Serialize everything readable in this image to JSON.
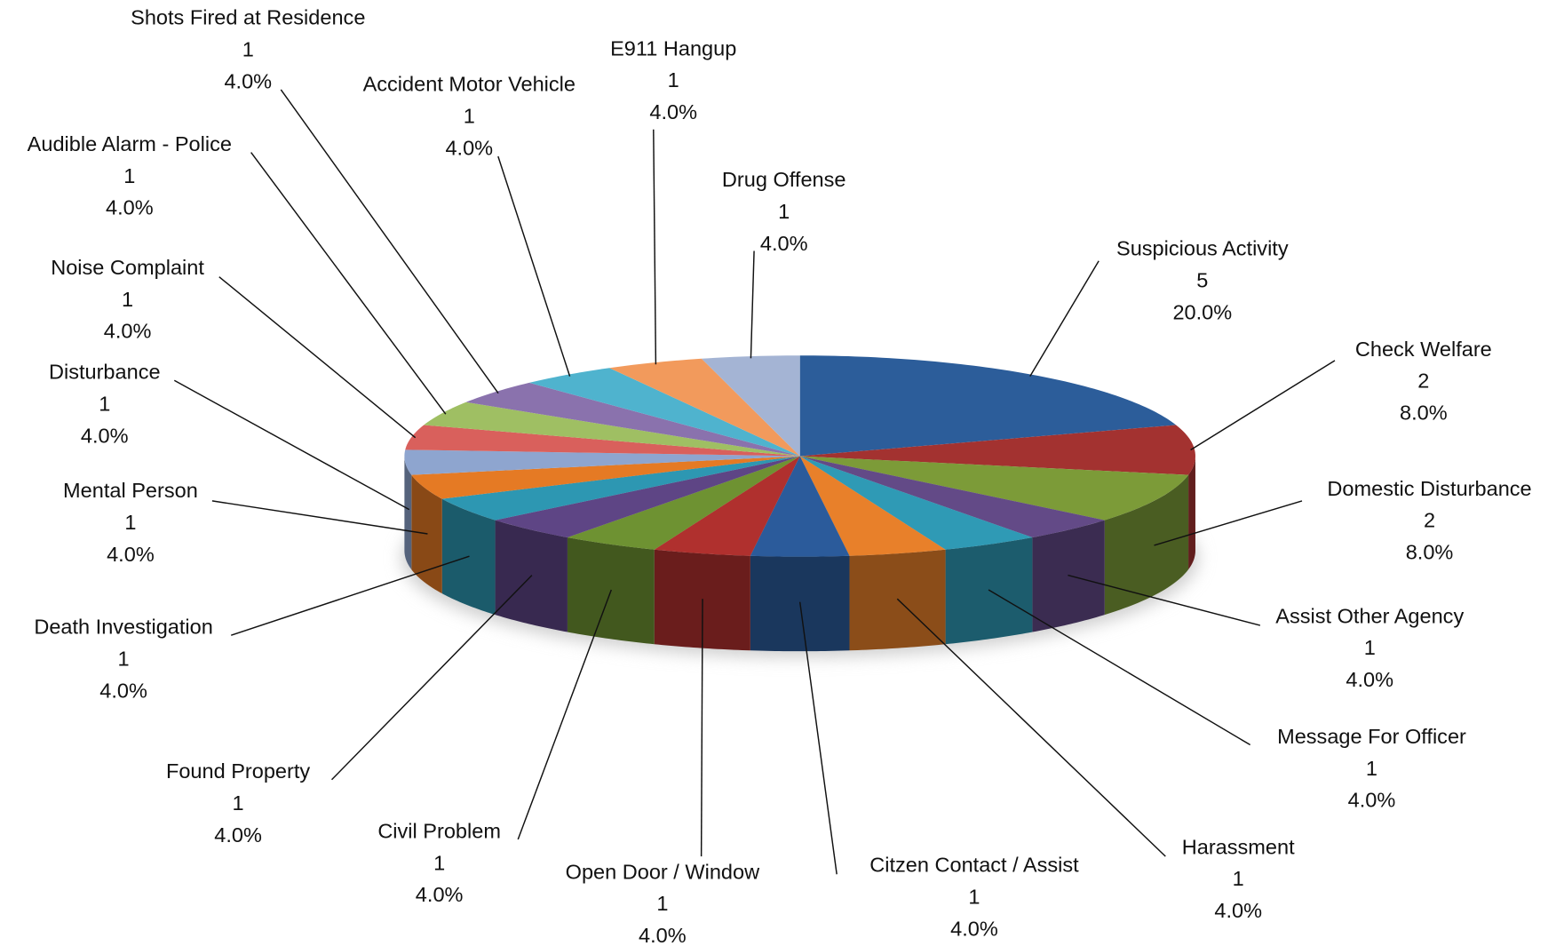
{
  "chart_data": {
    "type": "pie3d",
    "categories": [
      "Suspicious Activity",
      "Check Welfare",
      "Domestic Disturbance",
      "Assist Other Agency",
      "Message For Officer",
      "Harassment",
      "Citzen Contact / Assist",
      "Open Door / Window",
      "Civil Problem",
      "Found Property",
      "Death Investigation",
      "Mental Person",
      "Disturbance",
      "Noise Complaint",
      "Audible Alarm - Police",
      "Shots Fired at Residence",
      "Accident Motor Vehicle",
      "E911 Hangup",
      "Drug Offense"
    ],
    "values": [
      5,
      2,
      2,
      1,
      1,
      1,
      1,
      1,
      1,
      1,
      1,
      1,
      1,
      1,
      1,
      1,
      1,
      1,
      1
    ],
    "percents": [
      20,
      8,
      8,
      4,
      4,
      4,
      4,
      4,
      4,
      4,
      4,
      4,
      4,
      4,
      4,
      4,
      4,
      4,
      4
    ],
    "percent_labels": [
      "20.0%",
      "8.0%",
      "8.0%",
      "4.0%",
      "4.0%",
      "4.0%",
      "4.0%",
      "4.0%",
      "4.0%",
      "4.0%",
      "4.0%",
      "4.0%",
      "4.0%",
      "4.0%",
      "4.0%",
      "4.0%",
      "4.0%",
      "4.0%",
      "4.0%"
    ],
    "colors": [
      "#2c5d9a",
      "#a33230",
      "#7c9b38",
      "#634a87",
      "#2f9ab5",
      "#e8802a",
      "#2b5b9b",
      "#b0302e",
      "#6e9232",
      "#5e4585",
      "#2d97b2",
      "#e57a24",
      "#8ea5cf",
      "#d9605c",
      "#9fbf63",
      "#8a72ad",
      "#4fb3ce",
      "#f29a5c",
      "#a4b4d4"
    ]
  }
}
